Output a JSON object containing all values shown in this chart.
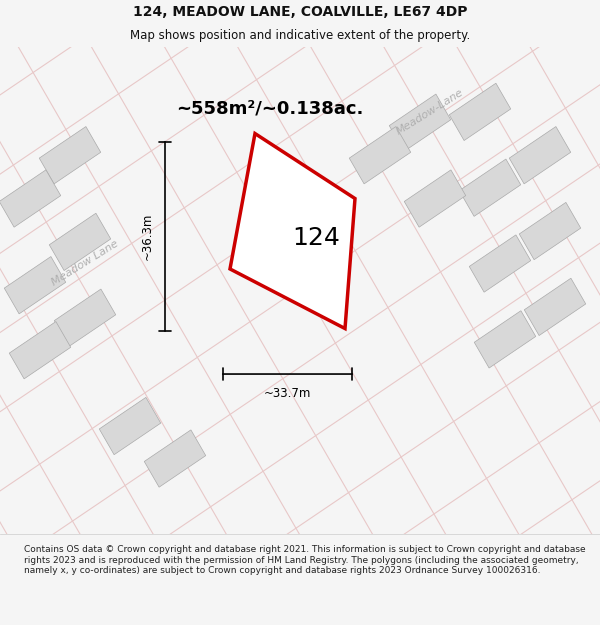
{
  "title_line1": "124, MEADOW LANE, COALVILLE, LE67 4DP",
  "title_line2": "Map shows position and indicative extent of the property.",
  "area_text": "~558m²/~0.138ac.",
  "label_124": "124",
  "width_label": "~33.7m",
  "height_label": "~36.3m",
  "road_label_diagonal": "Meadow Lane",
  "road_label_diagonal2": "Meadow-Lane",
  "footer_text": "Contains OS data © Crown copyright and database right 2021. This information is subject to Crown copyright and database rights 2023 and is reproduced with the permission of HM Land Registry. The polygons (including the associated geometry, namely x, y co-ordinates) are subject to Crown copyright and database rights 2023 Ordnance Survey 100026316.",
  "bg_color": "#f5f5f5",
  "map_bg": "#ffffff",
  "plot_color_fill": "#ffffff",
  "plot_color_edge": "#cc0000",
  "grid_line_color": "#e8c8c8",
  "building_fill": "#d8d8d8",
  "building_edge": "#aaaaaa",
  "road_text_color": "#bbbbbb",
  "title_color": "#111111",
  "footer_color": "#222222"
}
